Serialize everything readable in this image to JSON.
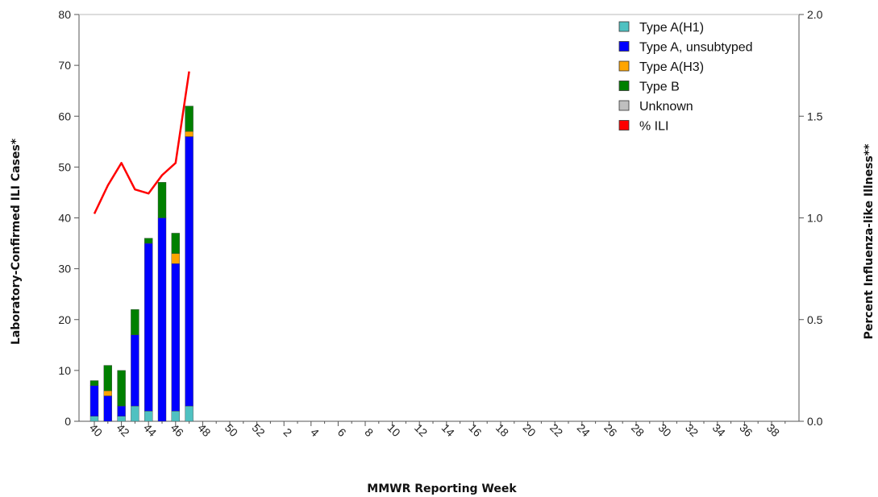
{
  "chart_data": {
    "type": "bar",
    "stacked": true,
    "xlabel": "MMWR Reporting Week",
    "ylabel": "Laboratory-Confirmed ILI Cases*",
    "y2label": "Percent Influenza-like Illness**",
    "ylim": [
      0,
      80
    ],
    "y2lim": [
      0.0,
      2.0
    ],
    "yticks": [
      "0",
      "10",
      "20",
      "30",
      "40",
      "50",
      "60",
      "70",
      "80"
    ],
    "y2ticks": [
      "0.0",
      "0.5",
      "1.0",
      "1.5",
      "2.0"
    ],
    "weeks": [
      40,
      41,
      42,
      43,
      44,
      45,
      46,
      47,
      48,
      49,
      50,
      51,
      52,
      1,
      2,
      3,
      4,
      5,
      6,
      7,
      8,
      9,
      10,
      11,
      12,
      13,
      14,
      15,
      16,
      17,
      18,
      19,
      20,
      21,
      22,
      23,
      24,
      25,
      26,
      27,
      28,
      29,
      30,
      31,
      32,
      33,
      34,
      35,
      36,
      37,
      38,
      39
    ],
    "xticks": [
      "40",
      "42",
      "44",
      "46",
      "48",
      "50",
      "52",
      "2",
      "4",
      "6",
      "8",
      "10",
      "12",
      "14",
      "16",
      "18",
      "20",
      "22",
      "24",
      "26",
      "28",
      "30",
      "32",
      "34",
      "36",
      "38"
    ],
    "series": [
      {
        "name": "Type A(H1)",
        "color": "#4fc1c1",
        "values": [
          1,
          0,
          1,
          3,
          2,
          0,
          2,
          3
        ]
      },
      {
        "name": "Type A, unsubtyped",
        "color": "#0000ff",
        "values": [
          6,
          5,
          2,
          14,
          33,
          40,
          29,
          53
        ]
      },
      {
        "name": "Type A(H3)",
        "color": "#ffa500",
        "values": [
          0,
          1,
          0,
          0,
          0,
          0,
          2,
          1
        ]
      },
      {
        "name": "Type B",
        "color": "#008000",
        "values": [
          1,
          5,
          7,
          5,
          1,
          7,
          4,
          5
        ]
      },
      {
        "name": "Unknown",
        "color": "#bfbfbf",
        "values": [
          0,
          0,
          0,
          0,
          0,
          0,
          0,
          0
        ]
      }
    ],
    "line": {
      "name": "% ILI",
      "color": "#ff0000",
      "axis": "y2",
      "values": [
        1.02,
        1.16,
        1.27,
        1.14,
        1.12,
        1.21,
        1.27,
        1.72
      ]
    },
    "legend_position": "top-right",
    "grid": false
  }
}
